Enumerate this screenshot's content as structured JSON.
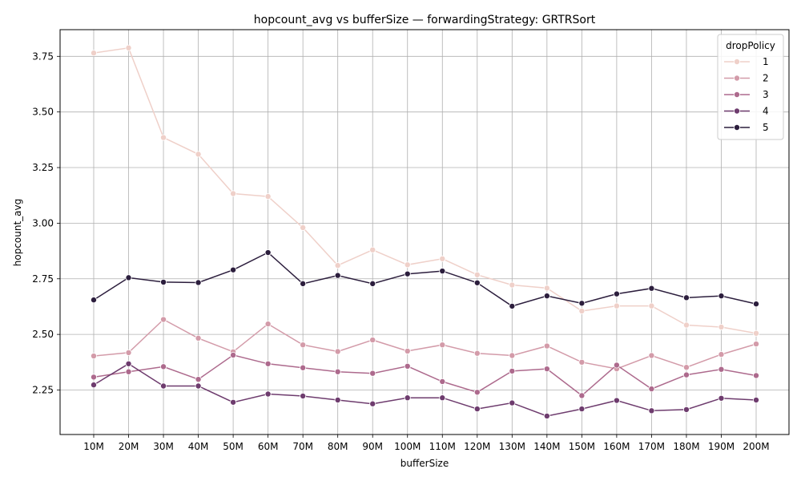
{
  "chart_data": {
    "type": "line",
    "title": "hopcount_avg vs bufferSize — forwardingStrategy: GRTRSort",
    "xlabel": "bufferSize",
    "ylabel": "hopcount_avg",
    "categories": [
      "10M",
      "20M",
      "30M",
      "40M",
      "50M",
      "60M",
      "70M",
      "80M",
      "90M",
      "100M",
      "110M",
      "120M",
      "130M",
      "140M",
      "150M",
      "160M",
      "170M",
      "180M",
      "190M",
      "200M"
    ],
    "ylim": [
      2.05,
      3.87
    ],
    "yticks": [
      2.25,
      2.5,
      2.75,
      3.0,
      3.25,
      3.5,
      3.75
    ],
    "ytick_labels": [
      "2.25",
      "2.50",
      "2.75",
      "3.00",
      "3.25",
      "3.50",
      "3.75"
    ],
    "grid": true,
    "legend": {
      "title": "dropPolicy",
      "placement": "top-right"
    },
    "series": [
      {
        "name": "1",
        "color": "#efd0c9",
        "values": [
          3.765,
          3.788,
          3.385,
          3.31,
          3.133,
          3.12,
          2.98,
          2.81,
          2.88,
          2.813,
          2.84,
          2.768,
          2.722,
          2.708,
          2.605,
          2.628,
          2.628,
          2.542,
          2.533,
          2.505
        ]
      },
      {
        "name": "2",
        "color": "#d39ba9",
        "values": [
          2.403,
          2.418,
          2.567,
          2.483,
          2.422,
          2.547,
          2.453,
          2.423,
          2.475,
          2.425,
          2.453,
          2.415,
          2.405,
          2.448,
          2.375,
          2.345,
          2.405,
          2.352,
          2.41,
          2.457
        ]
      },
      {
        "name": "3",
        "color": "#ad6a8d",
        "values": [
          2.308,
          2.332,
          2.355,
          2.298,
          2.407,
          2.368,
          2.35,
          2.332,
          2.325,
          2.357,
          2.288,
          2.24,
          2.335,
          2.345,
          2.225,
          2.362,
          2.255,
          2.318,
          2.343,
          2.315
        ]
      },
      {
        "name": "4",
        "color": "#6e3c6e",
        "values": [
          2.273,
          2.368,
          2.268,
          2.268,
          2.195,
          2.232,
          2.223,
          2.205,
          2.188,
          2.215,
          2.215,
          2.165,
          2.192,
          2.133,
          2.165,
          2.203,
          2.157,
          2.162,
          2.213,
          2.205
        ]
      },
      {
        "name": "5",
        "color": "#2c1e3d",
        "values": [
          2.655,
          2.755,
          2.735,
          2.733,
          2.79,
          2.868,
          2.728,
          2.765,
          2.728,
          2.772,
          2.785,
          2.732,
          2.627,
          2.673,
          2.64,
          2.682,
          2.707,
          2.665,
          2.673,
          2.637
        ]
      }
    ]
  }
}
